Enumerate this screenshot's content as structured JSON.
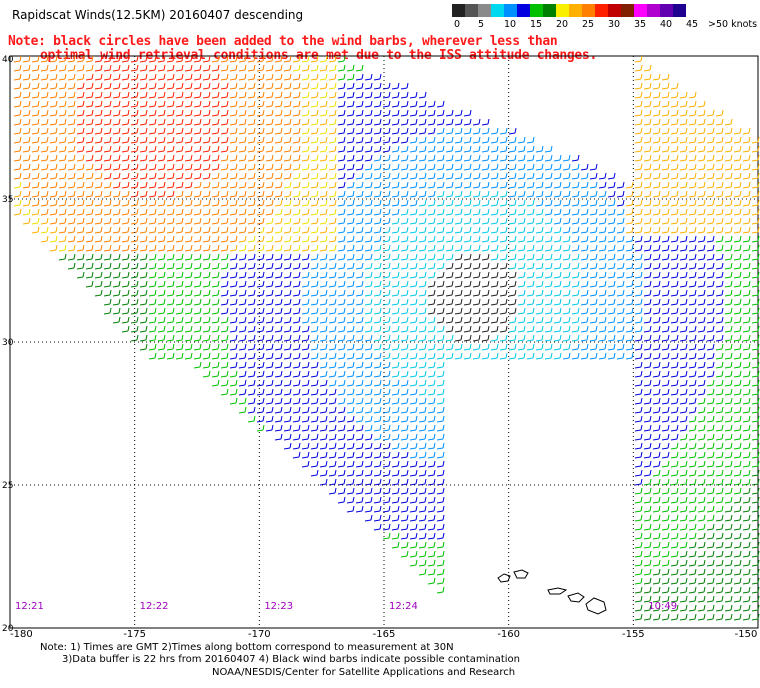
{
  "title": "Rapidscat Winds(12.5KM) 20160407 descending",
  "note_line1": "Note: black circles have been added to the wind barbs, wherever less than",
  "note_line2": "optimal wind retrieval conditions are met due to the ISS attitude changes.",
  "legend": {
    "labels": [
      "0",
      "5",
      "10",
      "15",
      "20",
      "25",
      "30",
      "35",
      "40",
      "45",
      ">50 knots"
    ],
    "colors": [
      "#222222",
      "#555555",
      "#8a8a8a",
      "#00d8f0",
      "#0090ff",
      "#0000e0",
      "#00c000",
      "#008000",
      "#f8f000",
      "#ffb000",
      "#ff8000",
      "#ff2000",
      "#c00000",
      "#802000",
      "#ff00ff",
      "#b000d0",
      "#6000b0",
      "#200090"
    ]
  },
  "axes": {
    "lon_ticks": [
      -180,
      -175,
      -170,
      -165,
      -160,
      -155,
      -150
    ],
    "lon_labels": [
      "-180",
      "-175",
      "-170",
      "-165",
      "-160",
      "-155",
      "-150"
    ],
    "lat_ticks": [
      20,
      25,
      30,
      35,
      40
    ],
    "lat_labels": [
      "20",
      "25",
      "30",
      "35",
      "40"
    ],
    "lon_range": [
      -180,
      -150
    ],
    "lat_range": [
      20,
      40
    ]
  },
  "pass_times": [
    {
      "label": "12:21",
      "lon": -179.8
    },
    {
      "label": "12:22",
      "lon": -174.8
    },
    {
      "label": "12:23",
      "lon": -169.8
    },
    {
      "label": "12:24",
      "lon": -164.8
    },
    {
      "label": "10:49",
      "lon": -154.4
    }
  ],
  "footnote_line1": "Note: 1) Times are GMT 2)Times along bottom correspond to measurement at 30N",
  "footnote_line2": "3)Data buffer is 22 hrs from 20160407 4) Black wind barbs indicate possible contamination",
  "credit": "NOAA/NESDIS/Center for Satellite Applications and Research",
  "colors": {
    "note": "#ff1a1a",
    "time_label": "#a000c0",
    "grid": "#000000"
  }
}
